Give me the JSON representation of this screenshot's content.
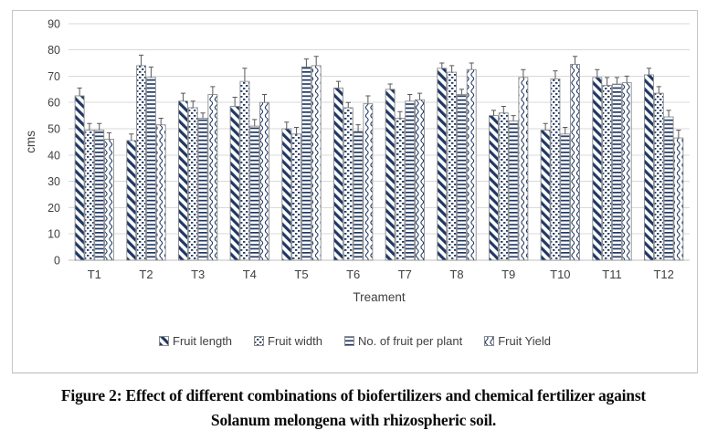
{
  "figure": {
    "caption_line1": "Figure 2: Effect of different combinations of biofertilizers and chemical fertilizer against",
    "caption_line2": "Solanum melongena with rhizospheric soil."
  },
  "chart_data": {
    "type": "bar",
    "title": "",
    "xlabel": "Treament",
    "ylabel": "cms",
    "ylim": [
      0,
      90
    ],
    "ytick_step": 10,
    "grid": true,
    "legend_position": "bottom",
    "error_bars": "plus-direction",
    "categories": [
      "T1",
      "T2",
      "T3",
      "T4",
      "T5",
      "T6",
      "T7",
      "T8",
      "T9",
      "T10",
      "T11",
      "T12"
    ],
    "series": [
      {
        "name": "Fruit length",
        "pattern": "diagonal-stripe",
        "values": [
          62.5,
          45.5,
          60.5,
          58.5,
          50,
          65.5,
          65,
          73,
          55,
          49.5,
          69.5,
          70.5
        ],
        "errors": [
          3,
          2.5,
          3,
          3.5,
          2.5,
          2.5,
          2,
          2,
          2,
          2.5,
          3,
          2.5
        ]
      },
      {
        "name": "Fruit width",
        "pattern": "dotted",
        "values": [
          49.5,
          74,
          58,
          68,
          48,
          58,
          54,
          71.5,
          56,
          69,
          66.5,
          63.5
        ],
        "errors": [
          2.5,
          4,
          2.5,
          5,
          2.5,
          2,
          2.5,
          2.5,
          2.5,
          3,
          3,
          2.5
        ]
      },
      {
        "name": "No. of fruit per plant",
        "pattern": "horizontal-lines",
        "values": [
          49.5,
          69.5,
          54,
          51,
          73.5,
          49,
          60.5,
          63,
          53,
          48,
          67,
          54.5
        ],
        "errors": [
          2.5,
          4,
          2,
          2.5,
          3,
          2.5,
          2.5,
          2,
          2,
          2.5,
          2.5,
          2.5
        ]
      },
      {
        "name": "Fruit Yield",
        "pattern": "wavy-lines",
        "values": [
          46,
          51.5,
          63,
          60,
          74,
          59.5,
          61,
          72.5,
          69.5,
          74.5,
          67.5,
          46.5
        ],
        "errors": [
          2.5,
          2.5,
          3,
          3,
          3.5,
          3,
          2.5,
          2.5,
          3,
          3,
          2.5,
          3
        ]
      }
    ],
    "colors": {
      "pattern_ink": "#1F3864",
      "bar_fill": "#FFFFFF",
      "bar_outline": "#8C8C8C",
      "gridline": "#D9D9D9",
      "axis_line": "#BFBFBF",
      "axis_text": "#404040",
      "error_bar": "#595959"
    }
  }
}
